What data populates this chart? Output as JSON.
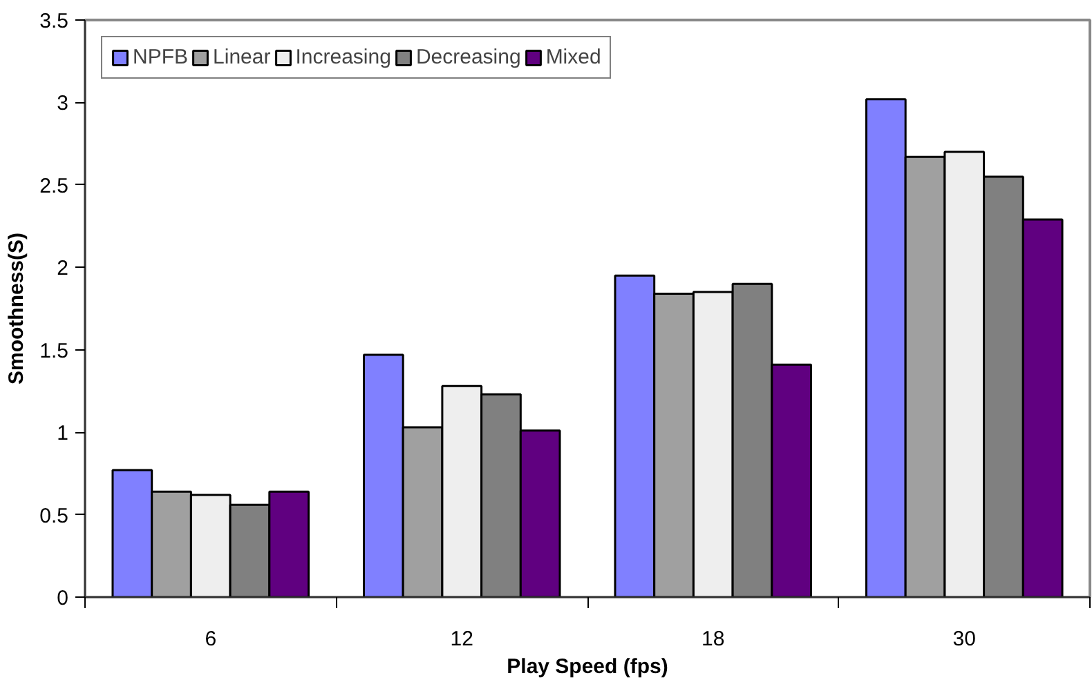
{
  "chart_data": {
    "type": "bar",
    "xlabel": "Play Speed (fps)",
    "ylabel": "Smoothness(S)",
    "categories": [
      "6",
      "12",
      "18",
      "30"
    ],
    "series": [
      {
        "name": "NPFB",
        "color": "#8080ff",
        "values": [
          0.77,
          1.47,
          1.95,
          3.02
        ]
      },
      {
        "name": "Linear",
        "color": "#a0a0a0",
        "values": [
          0.64,
          1.03,
          1.84,
          2.67
        ]
      },
      {
        "name": "Increasing",
        "color": "#eeeeee",
        "values": [
          0.62,
          1.28,
          1.85,
          2.7
        ]
      },
      {
        "name": "Decreasing",
        "color": "#808080",
        "values": [
          0.56,
          1.23,
          1.9,
          2.55
        ]
      },
      {
        "name": "Mixed",
        "color": "#600080",
        "values": [
          0.64,
          1.01,
          1.41,
          2.29
        ]
      }
    ],
    "ylim": [
      0,
      3.5
    ],
    "yticks": [
      0,
      0.5,
      1,
      1.5,
      2,
      2.5,
      3,
      3.5
    ],
    "grid": false,
    "legend": "top left"
  }
}
